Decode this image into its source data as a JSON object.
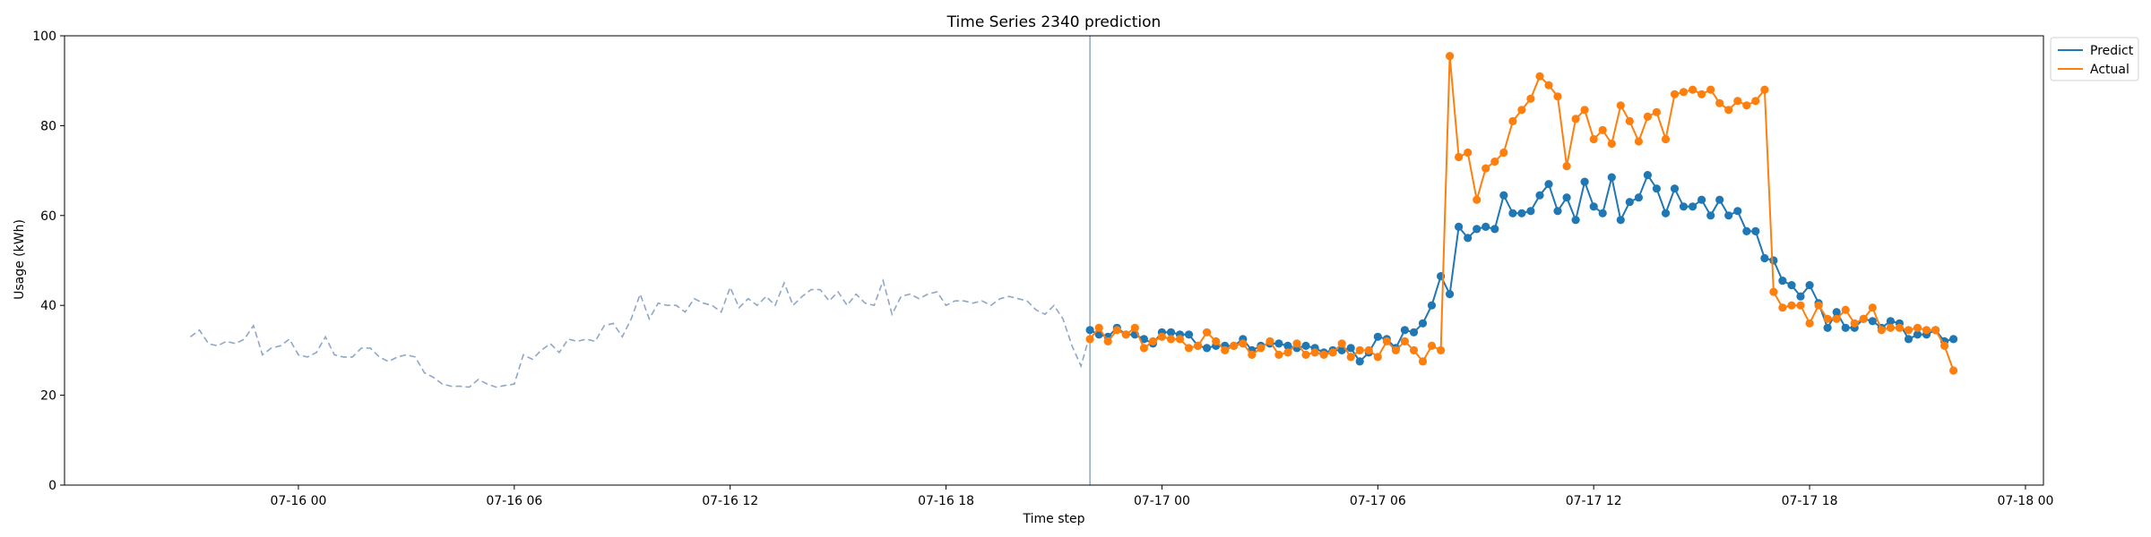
{
  "chart_data": {
    "type": "line",
    "title": "Time Series 2340 prediction",
    "xlabel": "Time step",
    "ylabel": "Usage (kWh)",
    "ylim": [
      0,
      100
    ],
    "xlim": [
      "07-15 17:30",
      "07-18 00:30"
    ],
    "x_ticks": [
      {
        "value": "07-16 00:00",
        "label": "07-16 00"
      },
      {
        "value": "07-16 06:00",
        "label": "07-16 06"
      },
      {
        "value": "07-16 12:00",
        "label": "07-16 12"
      },
      {
        "value": "07-16 18:00",
        "label": "07-16 18"
      },
      {
        "value": "07-17 00:00",
        "label": "07-17 00"
      },
      {
        "value": "07-17 06:00",
        "label": "07-17 06"
      },
      {
        "value": "07-17 12:00",
        "label": "07-17 12"
      },
      {
        "value": "07-17 18:00",
        "label": "07-17 18"
      },
      {
        "value": "07-18 00:00",
        "label": "07-18 00"
      }
    ],
    "y_ticks": [
      0,
      20,
      40,
      60,
      80,
      100
    ],
    "grid": false,
    "legend_position": "upper-right-outside",
    "forecast_start": "07-16 22:00",
    "history": {
      "style": "dashed",
      "color": "#8fa7c7",
      "x": [
        "07-15 21:00",
        "07-15 21:15",
        "07-15 21:30",
        "07-15 21:45",
        "07-15 22:00",
        "07-15 22:15",
        "07-15 22:30",
        "07-15 22:45",
        "07-15 23:00",
        "07-15 23:15",
        "07-15 23:30",
        "07-15 23:45",
        "07-16 00:00",
        "07-16 00:15",
        "07-16 00:30",
        "07-16 00:45",
        "07-16 01:00",
        "07-16 01:15",
        "07-16 01:30",
        "07-16 01:45",
        "07-16 02:00",
        "07-16 02:15",
        "07-16 02:30",
        "07-16 02:45",
        "07-16 03:00",
        "07-16 03:15",
        "07-16 03:30",
        "07-16 03:45",
        "07-16 04:00",
        "07-16 04:15",
        "07-16 04:30",
        "07-16 04:45",
        "07-16 05:00",
        "07-16 05:15",
        "07-16 05:30",
        "07-16 05:45",
        "07-16 06:00",
        "07-16 06:15",
        "07-16 06:30",
        "07-16 06:45",
        "07-16 07:00",
        "07-16 07:15",
        "07-16 07:30",
        "07-16 07:45",
        "07-16 08:00",
        "07-16 08:15",
        "07-16 08:30",
        "07-16 08:45",
        "07-16 09:00",
        "07-16 09:15",
        "07-16 09:30",
        "07-16 09:45",
        "07-16 10:00",
        "07-16 10:15",
        "07-16 10:30",
        "07-16 10:45",
        "07-16 11:00",
        "07-16 11:15",
        "07-16 11:30",
        "07-16 11:45",
        "07-16 12:00",
        "07-16 12:15",
        "07-16 12:30",
        "07-16 12:45",
        "07-16 13:00",
        "07-16 13:15",
        "07-16 13:30",
        "07-16 13:45",
        "07-16 14:00",
        "07-16 14:15",
        "07-16 14:30",
        "07-16 14:45",
        "07-16 15:00",
        "07-16 15:15",
        "07-16 15:30",
        "07-16 15:45",
        "07-16 16:00",
        "07-16 16:15",
        "07-16 16:30",
        "07-16 16:45",
        "07-16 17:00",
        "07-16 17:15",
        "07-16 17:30",
        "07-16 17:45",
        "07-16 18:00",
        "07-16 18:15",
        "07-16 18:30",
        "07-16 18:45",
        "07-16 19:00",
        "07-16 19:15",
        "07-16 19:30",
        "07-16 19:45",
        "07-16 20:00",
        "07-16 20:15",
        "07-16 20:30",
        "07-16 20:45",
        "07-16 21:00",
        "07-16 21:15",
        "07-16 21:30",
        "07-16 21:45",
        "07-16 22:00"
      ],
      "values": [
        33,
        34.5,
        31.5,
        31,
        32,
        31.5,
        32.5,
        35.5,
        29,
        30.5,
        31,
        32.5,
        29,
        28.5,
        29.5,
        33,
        29,
        28.5,
        28.5,
        30.5,
        30.5,
        28.5,
        27.5,
        28.5,
        29,
        28.5,
        25,
        24,
        22.5,
        22,
        22,
        21.8,
        23.5,
        22.5,
        21.8,
        22.2,
        22.5,
        29,
        28,
        30,
        31.5,
        29.5,
        32.5,
        32,
        32.5,
        32,
        35.5,
        36,
        33,
        37,
        42.5,
        37,
        40.5,
        40,
        40,
        38.5,
        41.5,
        40.5,
        40,
        38.5,
        44,
        39.5,
        41.5,
        40,
        42,
        40,
        45,
        40,
        42,
        43.5,
        43.5,
        41,
        43,
        40,
        42.5,
        40.5,
        40,
        45.5,
        38,
        42,
        42.5,
        41.5,
        42.5,
        43,
        40,
        41,
        41,
        40.5,
        41,
        40,
        41.5,
        42,
        41.5,
        41,
        39,
        38,
        40,
        37,
        31,
        26.5,
        33.5
      ]
    },
    "x": [
      "07-16 22:00",
      "07-16 22:15",
      "07-16 22:30",
      "07-16 22:45",
      "07-16 23:00",
      "07-16 23:15",
      "07-16 23:30",
      "07-16 23:45",
      "07-17 00:00",
      "07-17 00:15",
      "07-17 00:30",
      "07-17 00:45",
      "07-17 01:00",
      "07-17 01:15",
      "07-17 01:30",
      "07-17 01:45",
      "07-17 02:00",
      "07-17 02:15",
      "07-17 02:30",
      "07-17 02:45",
      "07-17 03:00",
      "07-17 03:15",
      "07-17 03:30",
      "07-17 03:45",
      "07-17 04:00",
      "07-17 04:15",
      "07-17 04:30",
      "07-17 04:45",
      "07-17 05:00",
      "07-17 05:15",
      "07-17 05:30",
      "07-17 05:45",
      "07-17 06:00",
      "07-17 06:15",
      "07-17 06:30",
      "07-17 06:45",
      "07-17 07:00",
      "07-17 07:15",
      "07-17 07:30",
      "07-17 07:45",
      "07-17 08:00",
      "07-17 08:15",
      "07-17 08:30",
      "07-17 08:45",
      "07-17 09:00",
      "07-17 09:15",
      "07-17 09:30",
      "07-17 09:45",
      "07-17 10:00",
      "07-17 10:15",
      "07-17 10:30",
      "07-17 10:45",
      "07-17 11:00",
      "07-17 11:15",
      "07-17 11:30",
      "07-17 11:45",
      "07-17 12:00",
      "07-17 12:15",
      "07-17 12:30",
      "07-17 12:45",
      "07-17 13:00",
      "07-17 13:15",
      "07-17 13:30",
      "07-17 13:45",
      "07-17 14:00",
      "07-17 14:15",
      "07-17 14:30",
      "07-17 14:45",
      "07-17 15:00",
      "07-17 15:15",
      "07-17 15:30",
      "07-17 15:45",
      "07-17 16:00",
      "07-17 16:15",
      "07-17 16:30",
      "07-17 16:45",
      "07-17 17:00",
      "07-17 17:15",
      "07-17 17:30",
      "07-17 17:45",
      "07-17 18:00",
      "07-17 18:15",
      "07-17 18:30",
      "07-17 18:45",
      "07-17 19:00",
      "07-17 19:15",
      "07-17 19:30",
      "07-17 19:45",
      "07-17 20:00",
      "07-17 20:15",
      "07-17 20:30",
      "07-17 20:45",
      "07-17 21:00",
      "07-17 21:15",
      "07-17 21:30",
      "07-17 21:45",
      "07-17 22:00"
    ],
    "series": [
      {
        "name": "Predict",
        "color": "#1f77b4",
        "values": [
          34.5,
          33.5,
          33,
          35,
          33.5,
          33.5,
          32.5,
          31.5,
          34,
          34,
          33.5,
          33.5,
          31,
          30.5,
          31,
          31,
          31,
          32.5,
          30,
          31,
          31.5,
          31.5,
          31,
          30.5,
          31,
          30.5,
          29.5,
          30,
          30,
          30.5,
          27.5,
          29.5,
          33,
          32.5,
          30.5,
          34.5,
          34,
          36,
          40,
          46.5,
          42.5,
          57.5,
          55,
          57,
          57.5,
          57,
          64.5,
          60.5,
          60.5,
          61,
          64.5,
          67,
          61,
          64,
          59,
          67.5,
          62,
          60.5,
          68.5,
          59,
          63,
          64,
          69,
          66,
          60.5,
          66,
          62,
          62,
          63.5,
          60,
          63.5,
          60,
          61,
          56.5,
          56.5,
          50.5,
          50,
          45.5,
          44.5,
          42,
          44.5,
          40.5,
          35,
          38.5,
          35,
          35,
          37,
          36.5,
          35,
          36.5,
          36,
          32.5,
          33.5,
          33.5,
          34.5,
          32,
          32.5
        ]
      },
      {
        "name": "Actual",
        "color": "#ff7f0e",
        "values": [
          32.5,
          35,
          32,
          34.5,
          33.5,
          35,
          30.5,
          32,
          33,
          32.5,
          32.5,
          30.5,
          31,
          34,
          32,
          30,
          31,
          31.5,
          29,
          30.5,
          32,
          29,
          29.5,
          31.5,
          29,
          29.5,
          29,
          29.5,
          31.5,
          28.5,
          30,
          30,
          28.5,
          32,
          30,
          32,
          30,
          27.5,
          31,
          30,
          95.5,
          73,
          74,
          63.5,
          70.5,
          72,
          74,
          81,
          83.5,
          86,
          91,
          89,
          86.5,
          71,
          81.5,
          83.5,
          77,
          79,
          76,
          84.5,
          81,
          76.5,
          82,
          83,
          77,
          87,
          87.5,
          88,
          87,
          88,
          85,
          83.5,
          85.5,
          84.5,
          85.5,
          88,
          43,
          39.5,
          40,
          40,
          36,
          40,
          37,
          37,
          39,
          36,
          37,
          39.5,
          34.5,
          35,
          35,
          34.5,
          35,
          34.5,
          34.5,
          31,
          25.5
        ]
      }
    ]
  }
}
